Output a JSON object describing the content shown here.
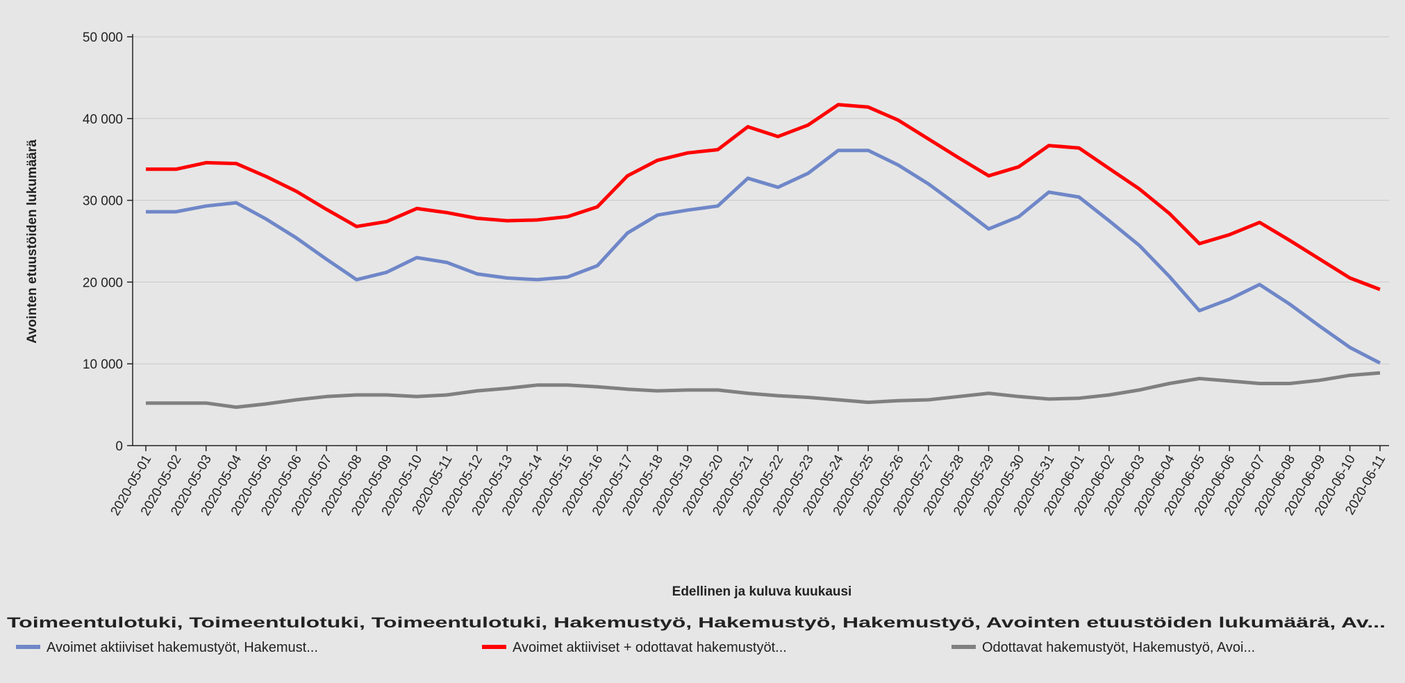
{
  "chart_data": {
    "type": "line",
    "y_label": "Avointen etuustöiden lukumäärä",
    "x_label": "Edellinen ja kuluva kuukausi",
    "legend_title": "Toimeentulotuki, Toimeentulotuki, Toimeentulotuki, Hakemustyö, Hakemustyö, Hakemustyö, Avointen etuustöiden lukumäärä, Av...",
    "categories": [
      "2020-05-01",
      "2020-05-02",
      "2020-05-03",
      "2020-05-04",
      "2020-05-05",
      "2020-05-06",
      "2020-05-07",
      "2020-05-08",
      "2020-05-09",
      "2020-05-10",
      "2020-05-11",
      "2020-05-12",
      "2020-05-13",
      "2020-05-14",
      "2020-05-15",
      "2020-05-16",
      "2020-05-17",
      "2020-05-18",
      "2020-05-19",
      "2020-05-20",
      "2020-05-21",
      "2020-05-22",
      "2020-05-23",
      "2020-05-24",
      "2020-05-25",
      "2020-05-26",
      "2020-05-27",
      "2020-05-28",
      "2020-05-29",
      "2020-05-30",
      "2020-05-31",
      "2020-06-01",
      "2020-06-02",
      "2020-06-03",
      "2020-06-04",
      "2020-06-05",
      "2020-06-06",
      "2020-06-07",
      "2020-06-08",
      "2020-06-09",
      "2020-06-10",
      "2020-06-11"
    ],
    "series": [
      {
        "name": "Avoimet aktiiviset hakemustyöt, Hakemust...",
        "color": "#6f87c8",
        "values": [
          28600,
          28600,
          29300,
          29700,
          27700,
          25400,
          22800,
          20300,
          21200,
          23000,
          22400,
          21000,
          20500,
          20300,
          20600,
          22000,
          26000,
          28200,
          28800,
          29300,
          32700,
          31600,
          33300,
          36100,
          36100,
          34300,
          32000,
          29300,
          26500,
          28000,
          31000,
          30400,
          27500,
          24500,
          20700,
          16500,
          17900,
          19700,
          17300,
          14600,
          12000,
          10100
        ]
      },
      {
        "name": "Avoimet aktiiviset + odottavat hakemustyöt...",
        "color": "#ff0000",
        "values": [
          33800,
          33800,
          34600,
          34500,
          32900,
          31100,
          28900,
          26800,
          27400,
          29000,
          28500,
          27800,
          27500,
          27600,
          28000,
          29200,
          33000,
          34900,
          35800,
          36200,
          39000,
          37800,
          39200,
          41700,
          41400,
          39800,
          37500,
          35200,
          33000,
          34100,
          36700,
          36400,
          33900,
          31400,
          28400,
          24700,
          25800,
          27300,
          25100,
          22800,
          20500,
          19100
        ]
      },
      {
        "name": "Odottavat hakemustyöt, Hakemustyö, Avoi...",
        "color": "#808080",
        "values": [
          5200,
          5200,
          5200,
          4700,
          5100,
          5600,
          6000,
          6200,
          6200,
          6000,
          6200,
          6700,
          7000,
          7400,
          7400,
          7200,
          6900,
          6700,
          6800,
          6800,
          6400,
          6100,
          5900,
          5600,
          5300,
          5500,
          5600,
          6000,
          6400,
          6000,
          5700,
          5800,
          6200,
          6800,
          7600,
          8200,
          7900,
          7600,
          7600,
          8000,
          8600,
          8900
        ]
      }
    ],
    "ylim": [
      0,
      50000
    ],
    "yticks": [
      0,
      {
        "value": 10000,
        "label": "10 000"
      },
      {
        "value": 20000,
        "label": "20 000"
      },
      {
        "value": 30000,
        "label": "30 000"
      },
      {
        "value": 40000,
        "label": "40 000"
      },
      {
        "value": 50000,
        "label": "50 000"
      }
    ],
    "grid": true
  }
}
